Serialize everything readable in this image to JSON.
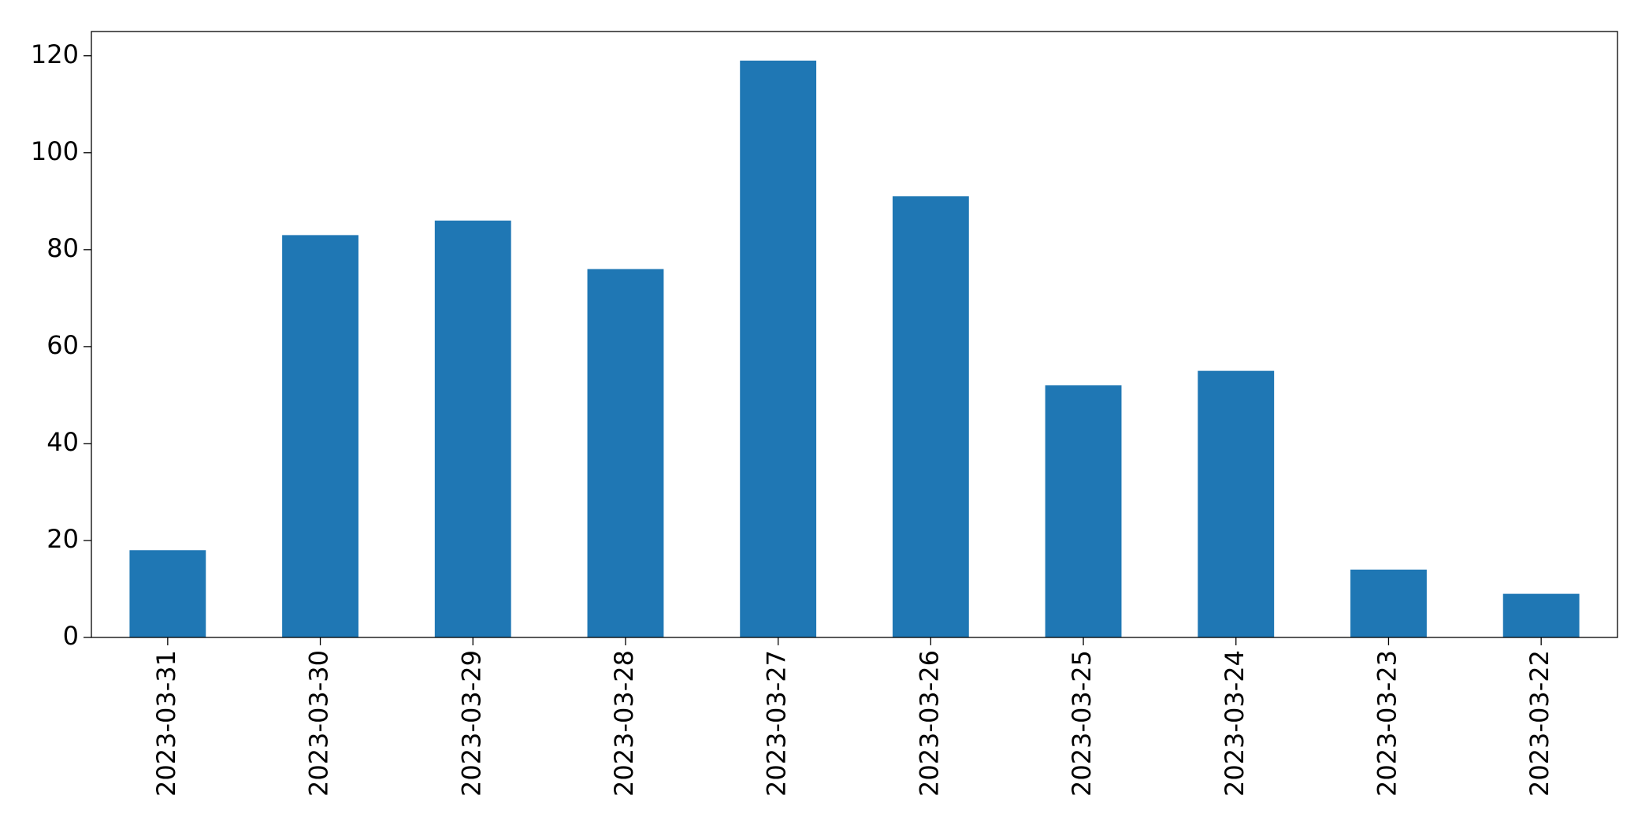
{
  "chart_data": {
    "type": "bar",
    "categories": [
      "2023-03-31",
      "2023-03-30",
      "2023-03-29",
      "2023-03-28",
      "2023-03-27",
      "2023-03-26",
      "2023-03-25",
      "2023-03-24",
      "2023-03-23",
      "2023-03-22"
    ],
    "values": [
      18,
      83,
      86,
      76,
      119,
      91,
      52,
      55,
      14,
      9
    ],
    "color": "#1f77b4",
    "ylim": [
      0,
      125
    ],
    "yticks": [
      0,
      20,
      40,
      60,
      80,
      100,
      120
    ],
    "grid": false
  }
}
